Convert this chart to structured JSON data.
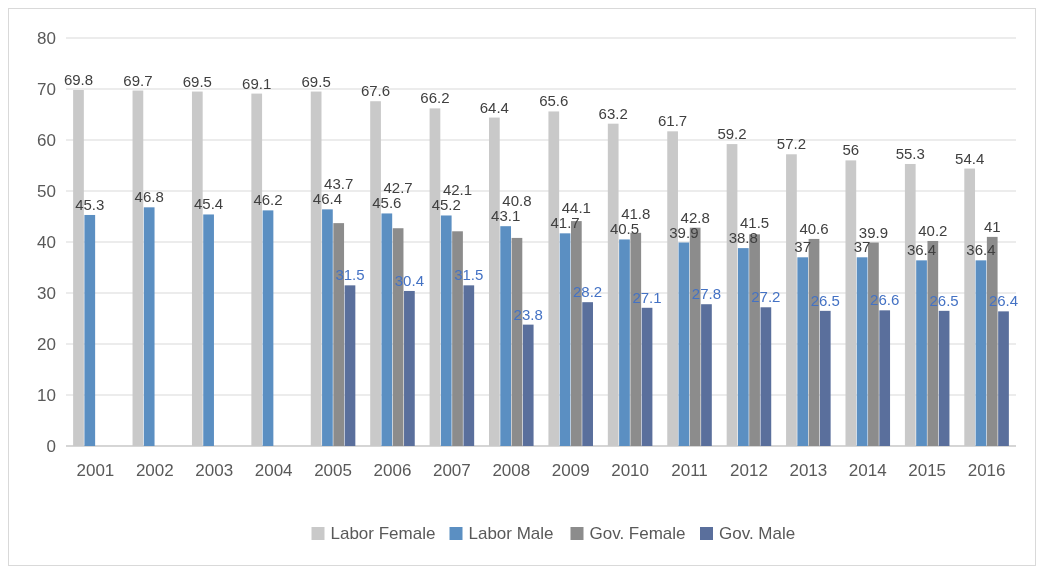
{
  "chart_data": {
    "type": "bar",
    "categories": [
      "2001",
      "2002",
      "2003",
      "2004",
      "2005",
      "2006",
      "2007",
      "2008",
      "2009",
      "2010",
      "2011",
      "2012",
      "2013",
      "2014",
      "2015",
      "2016"
    ],
    "series": [
      {
        "name": "Labor Female",
        "color": "#c9c9c9",
        "values": [
          69.8,
          69.7,
          69.5,
          69.1,
          69.5,
          67.6,
          66.2,
          64.4,
          65.6,
          63.2,
          61.7,
          59.2,
          57.2,
          56,
          55.3,
          54.4
        ]
      },
      {
        "name": "Labor Male",
        "color": "#5b8fc2",
        "values": [
          45.3,
          46.8,
          45.4,
          46.2,
          46.4,
          45.6,
          45.2,
          43.1,
          41.7,
          40.5,
          39.9,
          38.8,
          37,
          37,
          36.4,
          36.4
        ]
      },
      {
        "name": "Gov. Female",
        "color": "#8c8c8c",
        "values": [
          null,
          null,
          null,
          null,
          43.7,
          42.7,
          42.1,
          40.8,
          44.1,
          41.8,
          42.8,
          41.5,
          40.6,
          39.9,
          40.2,
          41
        ]
      },
      {
        "name": "Gov. Male",
        "color": "#5a6f9c",
        "values": [
          null,
          null,
          null,
          null,
          31.5,
          30.4,
          31.5,
          23.8,
          28.2,
          27.1,
          27.8,
          27.2,
          26.5,
          26.6,
          26.5,
          26.4
        ]
      }
    ],
    "ylim": [
      0,
      80
    ],
    "yticks": [
      0,
      10,
      20,
      30,
      40,
      50,
      60,
      70,
      80
    ],
    "grid": "y",
    "legend": "bottom",
    "data_labels": true
  }
}
